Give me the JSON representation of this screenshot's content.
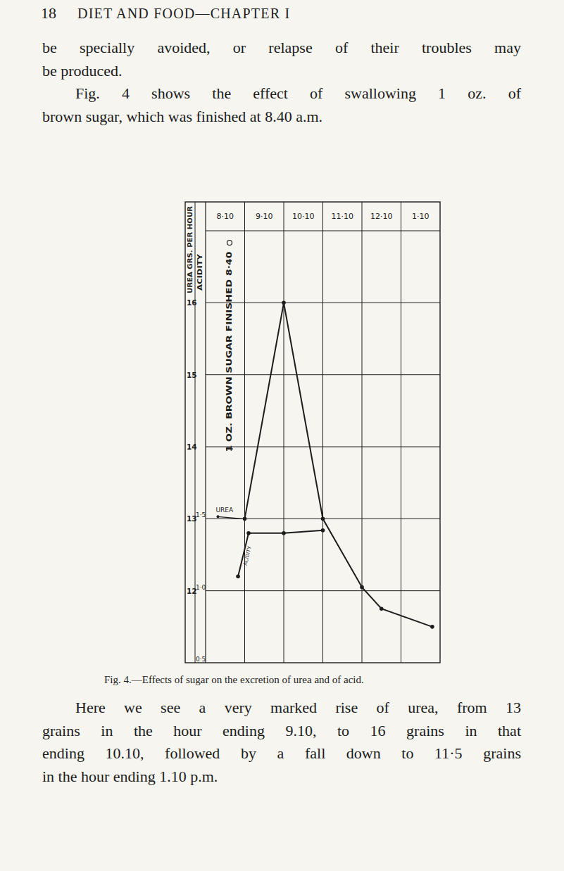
{
  "header": {
    "page_number": "18",
    "running_title": "DIET AND FOOD—CHAPTER I"
  },
  "paragraphs_before": [
    [
      "be specially avoided, or relapse of their troubles may",
      "be produced."
    ],
    [
      "Fig. 4 shows the effect of swallowing 1 oz. of",
      "brown sugar, which was finished at 8.40 a.m."
    ]
  ],
  "chart_data": {
    "type": "line",
    "grid": true,
    "marker": "circle",
    "xlim": [
      0,
      6
    ],
    "xticks": [
      {
        "value": 0.5,
        "label": "8·10"
      },
      {
        "value": 1.5,
        "label": "9·10"
      },
      {
        "value": 2.5,
        "label": "10·10"
      },
      {
        "value": 3.5,
        "label": "11·10"
      },
      {
        "value": 4.5,
        "label": "12·10"
      },
      {
        "value": 5.5,
        "label": "1·10"
      }
    ],
    "ylabel": "UREA GRS. PER HOUR",
    "ylim": [
      11,
      17
    ],
    "yticks": [
      12,
      13,
      14,
      15,
      16
    ],
    "y2label": "ACIDITY",
    "y2lim": [
      0.5,
      3.5
    ],
    "y2ticks": [
      {
        "value": 0.5,
        "label": "0·5"
      },
      {
        "value": 1,
        "label": "1·0"
      },
      {
        "value": 1.5,
        "label": "1·5"
      }
    ],
    "annotations": [
      {
        "text": "1 OZ. BROWN SUGAR FINISHED 8·40"
      }
    ],
    "series": [
      {
        "name": "UREA",
        "color": "#1c1c1c",
        "x": [
          1,
          2,
          3,
          4,
          4.5,
          5.8
        ],
        "values": [
          13,
          16,
          13,
          12.05,
          11.75,
          11.5
        ]
      },
      {
        "name": "ACIDITY",
        "color": "#1c1c1c",
        "axis": "y2",
        "x": [
          0.83,
          1.1,
          2,
          3
        ],
        "values": [
          1.1,
          1.4,
          1.4,
          1.42
        ]
      }
    ]
  },
  "caption": "Fig. 4.—Effects of sugar on the excretion of urea and of acid.",
  "paragraphs_after": [
    [
      "Here we see a very marked rise of urea, from 13",
      "grains in the hour ending 9.10, to 16 grains in that",
      "ending 10.10, followed by a fall down to 11·5 grains",
      "in the hour ending 1.10 p.m."
    ]
  ]
}
